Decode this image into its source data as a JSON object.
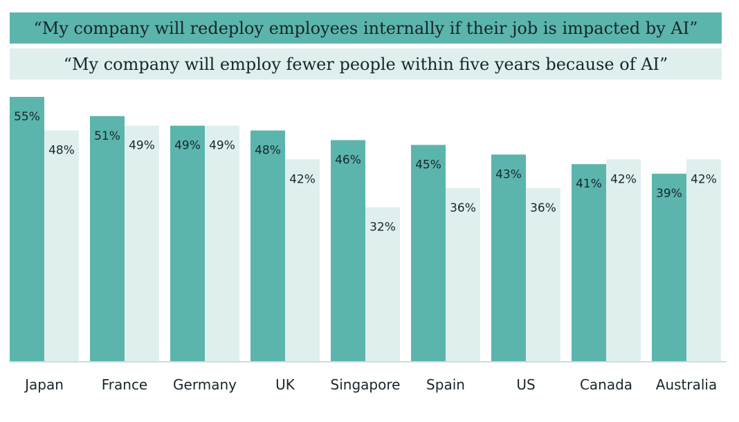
{
  "chart_data": {
    "type": "bar",
    "categories": [
      "Japan",
      "France",
      "Germany",
      "UK",
      "Singapore",
      "Spain",
      "US",
      "Canada",
      "Australia"
    ],
    "series": [
      {
        "name": "“My company will redeploy employees internally if their job is impacted by AI”",
        "color": "#5bb5ad",
        "values": [
          55,
          51,
          49,
          48,
          46,
          45,
          43,
          41,
          39
        ],
        "labels": [
          "55%",
          "51%",
          "49%",
          "48%",
          "46%",
          "45%",
          "43%",
          "41%",
          "39%"
        ]
      },
      {
        "name": "“My company will employ fewer people within five years because of AI”",
        "color": "#dfefee",
        "values": [
          48,
          49,
          49,
          42,
          32,
          36,
          36,
          42,
          42
        ],
        "labels": [
          "48%",
          "49%",
          "49%",
          "42%",
          "32%",
          "36%",
          "36%",
          "42%",
          "42%"
        ]
      }
    ],
    "legend_placement": "top",
    "ylim": [
      0,
      55
    ],
    "grid": false,
    "baseline_color": "#d4d8dc",
    "label_color": "#16262a"
  }
}
